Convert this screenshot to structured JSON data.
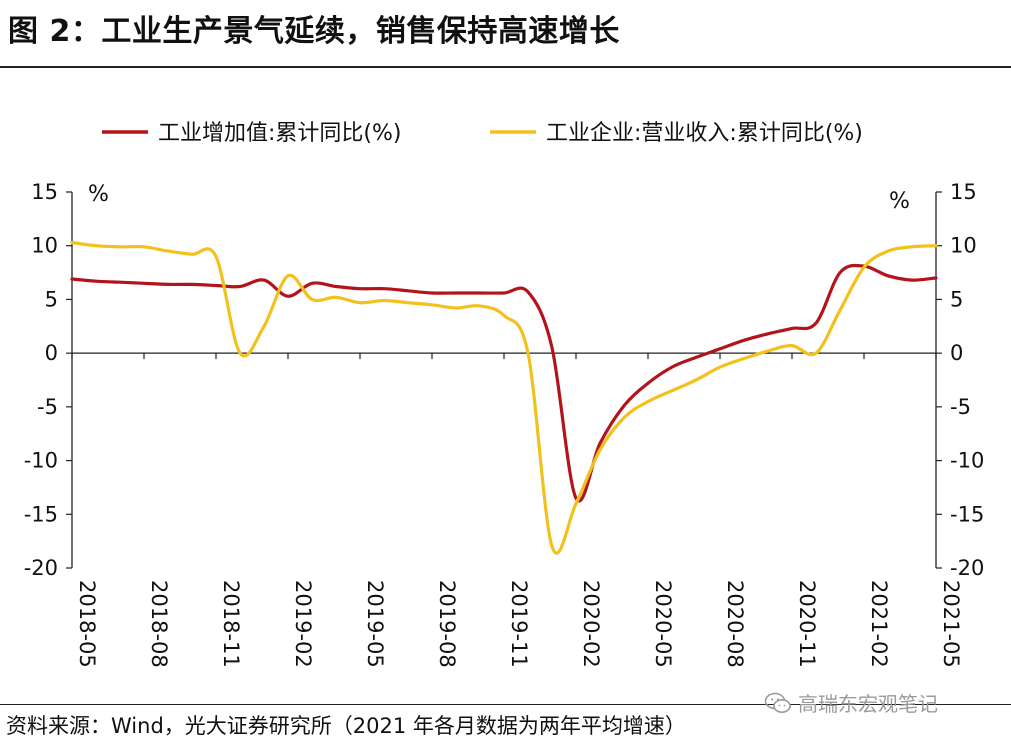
{
  "header": {
    "title": "图 2：工业生产景气延续，销售保持高速增长"
  },
  "footer": {
    "source": "资料来源：Wind，光大证券研究所（2021 年各月数据为两年平均增速）",
    "watermark": "高瑞东宏观笔记",
    "watermark_icon": "wechat-icon"
  },
  "chart_data": {
    "type": "line",
    "left_axis": {
      "unit": "%",
      "ylim": [
        -20,
        15
      ],
      "ticks": [
        15,
        10,
        5,
        0,
        -5,
        -10,
        -15,
        -20
      ]
    },
    "right_axis": {
      "unit": "%",
      "ylim": [
        -20,
        15
      ],
      "ticks": [
        15,
        10,
        5,
        0,
        -5,
        -10,
        -15,
        -20
      ]
    },
    "x_ticks": [
      "2018-05",
      "2018-08",
      "2018-11",
      "2019-02",
      "2019-05",
      "2019-08",
      "2019-11",
      "2020-02",
      "2020-05",
      "2020-08",
      "2020-11",
      "2021-02",
      "2021-05"
    ],
    "legend_position": "top",
    "grid": false,
    "series": [
      {
        "name": "工业增加值:累计同比(%)",
        "color": "#b3141c",
        "x": [
          "2018-05",
          "2018-06",
          "2018-07",
          "2018-08",
          "2018-09",
          "2018-10",
          "2018-11",
          "2018-12",
          "2019-01",
          "2019-02",
          "2019-03",
          "2019-04",
          "2019-05",
          "2019-06",
          "2019-07",
          "2019-08",
          "2019-09",
          "2019-10",
          "2019-11",
          "2019-12",
          "2020-01",
          "2020-02",
          "2020-03",
          "2020-04",
          "2020-05",
          "2020-06",
          "2020-07",
          "2020-08",
          "2020-09",
          "2020-10",
          "2020-11",
          "2020-12",
          "2021-01",
          "2021-02",
          "2021-03",
          "2021-04",
          "2021-05"
        ],
        "values": [
          6.9,
          6.7,
          6.6,
          6.5,
          6.4,
          6.4,
          6.3,
          6.2,
          6.8,
          5.3,
          6.5,
          6.2,
          6.0,
          6.0,
          5.8,
          5.6,
          5.6,
          5.6,
          5.6,
          5.7,
          0.5,
          -13.5,
          -8.4,
          -4.9,
          -2.8,
          -1.3,
          -0.4,
          0.4,
          1.2,
          1.8,
          2.3,
          2.8,
          7.5,
          8.1,
          7.2,
          6.8,
          7.0
        ]
      },
      {
        "name": "工业企业:营业收入:累计同比(%)",
        "color": "#f2c11c",
        "x": [
          "2018-05",
          "2018-06",
          "2018-07",
          "2018-08",
          "2018-09",
          "2018-10",
          "2018-11",
          "2018-12",
          "2019-01",
          "2019-02",
          "2019-03",
          "2019-04",
          "2019-05",
          "2019-06",
          "2019-07",
          "2019-08",
          "2019-09",
          "2019-10",
          "2019-11",
          "2019-12",
          "2020-01",
          "2020-02",
          "2020-03",
          "2020-04",
          "2020-05",
          "2020-06",
          "2020-07",
          "2020-08",
          "2020-09",
          "2020-10",
          "2020-11",
          "2020-12",
          "2021-01",
          "2021-02",
          "2021-03",
          "2021-04",
          "2021-05"
        ],
        "values": [
          10.3,
          10.0,
          9.9,
          9.9,
          9.5,
          9.2,
          9.0,
          0.0,
          2.5,
          7.2,
          5.0,
          5.2,
          4.7,
          4.9,
          4.7,
          4.5,
          4.2,
          4.4,
          3.5,
          0.0,
          -18.0,
          -14.0,
          -9.0,
          -6.0,
          -4.5,
          -3.5,
          -2.5,
          -1.3,
          -0.5,
          0.2,
          0.7,
          0.0,
          4.0,
          8.0,
          9.5,
          9.9,
          10.0
        ]
      }
    ]
  }
}
